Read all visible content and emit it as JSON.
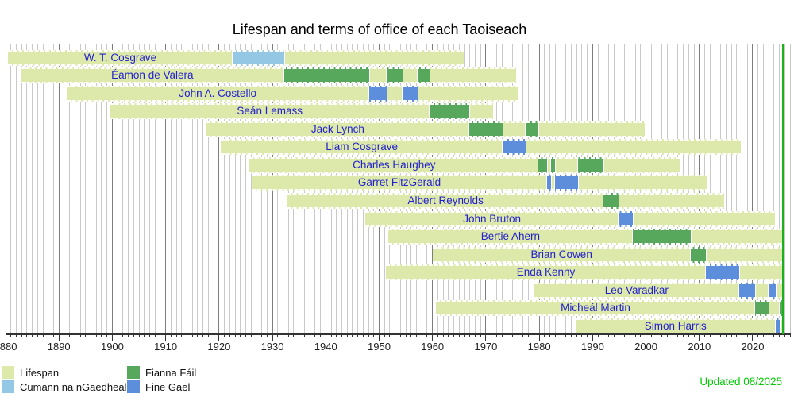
{
  "title": "Lifespan and terms of office of each Taoiseach",
  "updated": "Updated 08/2025",
  "colors": {
    "lifespan": "#dde8ab",
    "cumann": "#93c7e4",
    "fianna_fail": "#57a75c",
    "fine_gael": "#5c8edc",
    "name_text": "#2222cc",
    "updated_text": "#00cc00",
    "now_line": "#19b219",
    "grid_minor": "#c9c9c9",
    "grid_decade": "#7d7d7d",
    "axis_line": "#333333"
  },
  "axis": {
    "start_year": 1880,
    "end_year": 2027,
    "now": 2025.7,
    "decade_labels": [
      1880,
      1890,
      1900,
      1910,
      1920,
      1930,
      1940,
      1950,
      1960,
      1970,
      1980,
      1990,
      2000,
      2010,
      2020
    ]
  },
  "legend": {
    "items": [
      {
        "label": "Lifespan",
        "color_key": "lifespan"
      },
      {
        "label": "Cumann na nGaedheal",
        "color_key": "cumann"
      },
      {
        "label": "Fianna Fáil",
        "color_key": "fianna_fail"
      },
      {
        "label": "Fine Gael",
        "color_key": "fine_gael"
      }
    ]
  },
  "chart_data": {
    "type": "timeline-gantt",
    "title": "Lifespan and terms of office of each Taoiseach",
    "x_range": [
      1880,
      2027
    ],
    "people": [
      {
        "name": "W. T. Cosgrave",
        "born": 1880.4,
        "died": 1965.9,
        "party": "cumann",
        "terms": [
          [
            1922.6,
            1932.2
          ]
        ]
      },
      {
        "name": "Éamon de Valera",
        "born": 1882.8,
        "died": 1975.7,
        "party": "fianna_fail",
        "terms": [
          [
            1932.2,
            1948.1
          ],
          [
            1951.4,
            1954.4
          ],
          [
            1957.2,
            1959.5
          ]
        ]
      },
      {
        "name": "John A. Costello",
        "born": 1891.4,
        "died": 1976.0,
        "party": "fine_gael",
        "terms": [
          [
            1948.1,
            1951.4
          ],
          [
            1954.4,
            1957.2
          ]
        ]
      },
      {
        "name": "Seán Lemass",
        "born": 1899.5,
        "died": 1971.4,
        "party": "fianna_fail",
        "terms": [
          [
            1959.5,
            1966.9
          ]
        ]
      },
      {
        "name": "Jack Lynch",
        "born": 1917.6,
        "died": 1999.8,
        "party": "fianna_fail",
        "terms": [
          [
            1966.9,
            1973.2
          ],
          [
            1977.5,
            1979.9
          ]
        ]
      },
      {
        "name": "Liam Cosgrave",
        "born": 1920.3,
        "died": 2017.8,
        "party": "fine_gael",
        "terms": [
          [
            1973.2,
            1977.5
          ]
        ]
      },
      {
        "name": "Charles Haughey",
        "born": 1925.7,
        "died": 2006.4,
        "party": "fianna_fail",
        "terms": [
          [
            1979.9,
            1981.5
          ],
          [
            1982.2,
            1982.9
          ],
          [
            1987.2,
            1992.1
          ]
        ]
      },
      {
        "name": "Garret FitzGerald",
        "born": 1926.1,
        "died": 2011.4,
        "party": "fine_gael",
        "terms": [
          [
            1981.5,
            1982.2
          ],
          [
            1982.9,
            1987.2
          ]
        ]
      },
      {
        "name": "Albert Reynolds",
        "born": 1932.8,
        "died": 2014.6,
        "party": "fianna_fail",
        "terms": [
          [
            1992.1,
            1994.9
          ]
        ]
      },
      {
        "name": "John Bruton",
        "born": 1947.4,
        "died": 2024.1,
        "party": "fine_gael",
        "terms": [
          [
            1994.9,
            1997.5
          ]
        ]
      },
      {
        "name": "Bertie Ahern",
        "born": 1951.7,
        "died": null,
        "party": "fianna_fail",
        "terms": [
          [
            1997.5,
            2008.35
          ]
        ]
      },
      {
        "name": "Brian Cowen",
        "born": 1960.0,
        "died": null,
        "party": "fianna_fail",
        "terms": [
          [
            2008.35,
            2011.2
          ]
        ]
      },
      {
        "name": "Enda Kenny",
        "born": 1951.3,
        "died": null,
        "party": "fine_gael",
        "terms": [
          [
            2011.2,
            2017.45
          ]
        ]
      },
      {
        "name": "Leo Varadkar",
        "born": 1979.05,
        "died": null,
        "party": "fine_gael",
        "terms": [
          [
            2017.45,
            2020.5
          ],
          [
            2022.95,
            2024.3
          ]
        ]
      },
      {
        "name": "Micheál Martin",
        "born": 1960.6,
        "died": null,
        "party": "fianna_fail",
        "terms": [
          [
            2020.5,
            2022.95
          ],
          [
            2025.05,
            2025.7
          ]
        ]
      },
      {
        "name": "Simon Harris",
        "born": 1986.75,
        "died": null,
        "party": "fine_gael",
        "terms": [
          [
            2024.3,
            2025.05
          ]
        ]
      }
    ]
  }
}
